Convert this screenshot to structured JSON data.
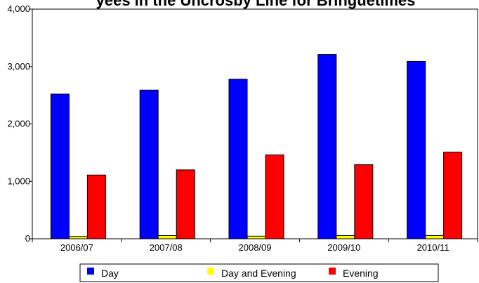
{
  "chart_data": {
    "type": "bar",
    "title": "yees in the Uncrosby Line for Bringuetimes",
    "xlabel": "",
    "ylabel": "",
    "categories": [
      "2006/07",
      "2007/08",
      "2008/09",
      "2009/10",
      "2010/11"
    ],
    "series": [
      {
        "name": "Day",
        "color": "#0000ff",
        "values": [
          2520,
          2590,
          2780,
          3210,
          3090
        ]
      },
      {
        "name": "Day and Evening",
        "color": "#ffff00",
        "values": [
          40,
          55,
          45,
          55,
          55
        ]
      },
      {
        "name": "Evening",
        "color": "#ff0000",
        "values": [
          1110,
          1200,
          1460,
          1290,
          1510
        ]
      }
    ],
    "ylim": [
      0,
      4000
    ],
    "yticks": [
      0,
      1000,
      2000,
      3000,
      4000
    ],
    "ytick_labels": [
      "0",
      "1,000",
      "2,000",
      "3,000",
      "4,000"
    ],
    "grid": false,
    "legend_position": "bottom"
  }
}
